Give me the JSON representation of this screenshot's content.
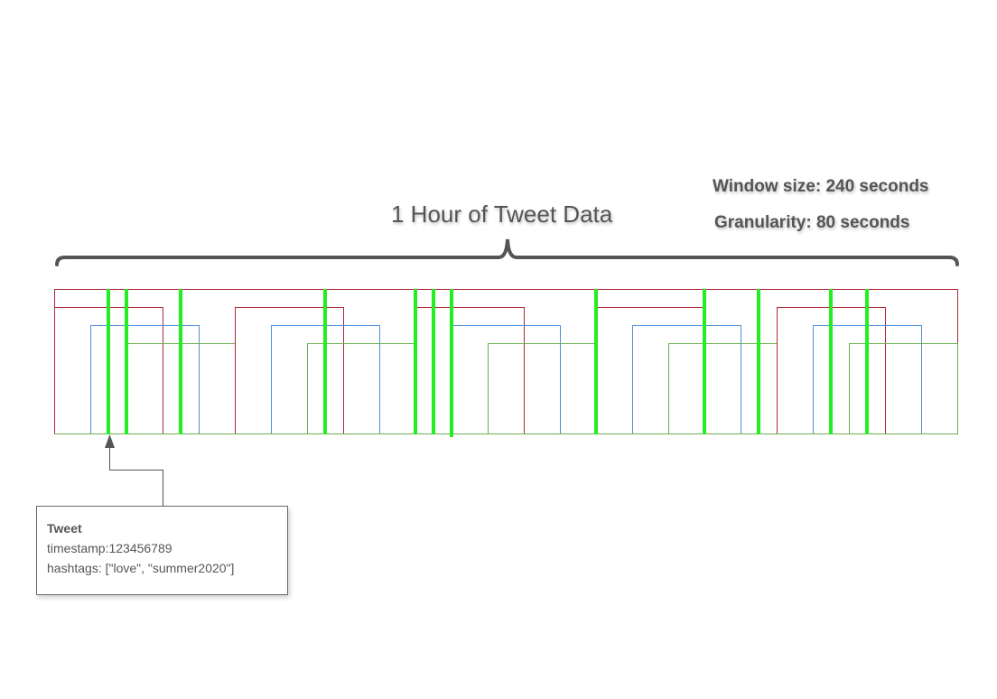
{
  "title": "1 Hour of Tweet Data",
  "window_size": "Window size: 240 seconds",
  "granularity": "Granularity: 80 seconds",
  "tweet": {
    "title": "Tweet",
    "timestamp": "timestamp:123456789",
    "hashtags": "hashtags: [\"love\", \"summer2020\"]"
  },
  "colors": {
    "window_a": "#b02a3a",
    "window_b": "#4a90d9",
    "window_c": "#6ab04c",
    "tweet_marker": "#22ee22",
    "outline": "#555555"
  }
}
